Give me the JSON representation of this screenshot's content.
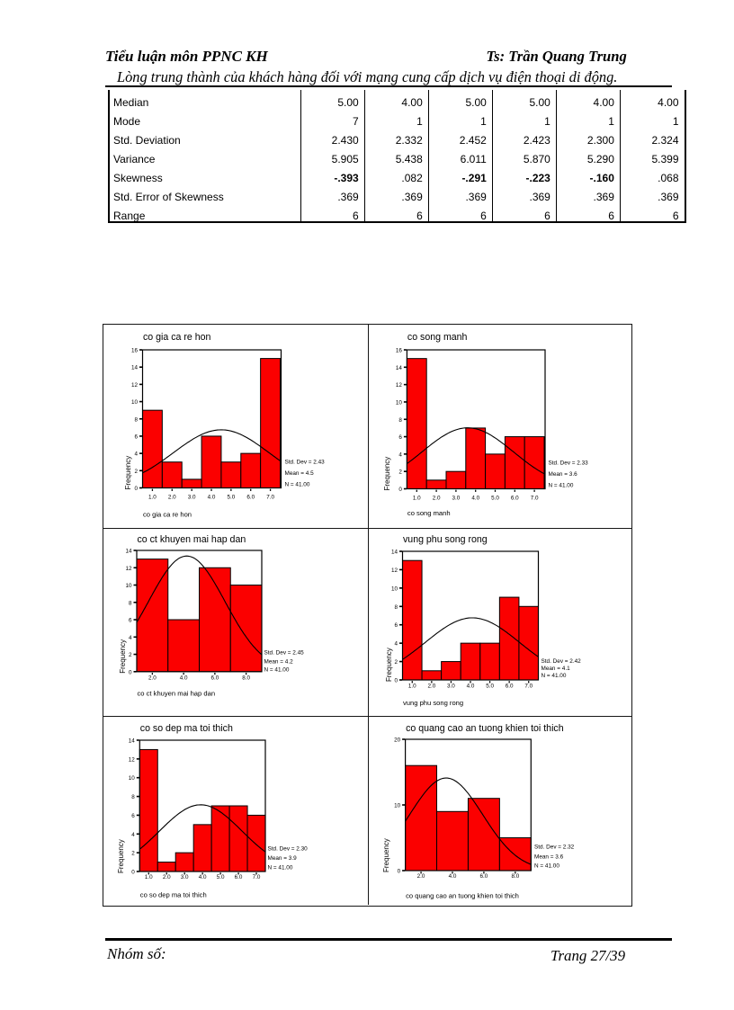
{
  "header": {
    "course": "Tiểu luận môn PPNC KH",
    "teacher": "Ts: Trần Quang Trung",
    "subtitle": "Lòng trung thành của khách hàng đối với mạng cung cấp dịch vụ điện thoại di động."
  },
  "stats_table": {
    "rows": [
      {
        "label": "Median",
        "values": [
          "5.00",
          "4.00",
          "5.00",
          "5.00",
          "4.00",
          "4.00"
        ]
      },
      {
        "label": "Mode",
        "values": [
          "7",
          "1",
          "1",
          "1",
          "1",
          "1"
        ]
      },
      {
        "label": "Std. Deviation",
        "values": [
          "2.430",
          "2.332",
          "2.452",
          "2.423",
          "2.300",
          "2.324"
        ]
      },
      {
        "label": "Variance",
        "values": [
          "5.905",
          "5.438",
          "6.011",
          "5.870",
          "5.290",
          "5.399"
        ]
      },
      {
        "label": "Skewness",
        "values": [
          "-.393",
          ".082",
          "-.291",
          "-.223",
          "-.160",
          ".068"
        ],
        "bold": [
          true,
          false,
          true,
          true,
          true,
          false
        ]
      },
      {
        "label": "Std. Error of Skewness",
        "values": [
          ".369",
          ".369",
          ".369",
          ".369",
          ".369",
          ".369"
        ]
      },
      {
        "label": "Range",
        "values": [
          "6",
          "6",
          "6",
          "6",
          "6",
          "6"
        ]
      }
    ]
  },
  "chart_data": [
    {
      "type": "bar",
      "title": "co gia ca re hon",
      "xlabel": "co gia ca re hon",
      "ylabel": "Frequency",
      "categories": [
        "1.0",
        "2.0",
        "3.0",
        "4.0",
        "5.0",
        "6.0",
        "7.0"
      ],
      "values": [
        9,
        3,
        1,
        6,
        3,
        4,
        15
      ],
      "ylim": [
        0,
        16
      ],
      "ytick_step": 2,
      "stats": [
        "Std. Dev = 2.43",
        "Mean = 4.5",
        "N = 41.00"
      ],
      "mean": 4.5,
      "std_dev": 2.43,
      "n": 41,
      "bin_width": 1,
      "bar_color": "#fb0000"
    },
    {
      "type": "bar",
      "title": "co song manh",
      "xlabel": "co song manh",
      "ylabel": "Frequency",
      "categories": [
        "1.0",
        "2.0",
        "3.0",
        "4.0",
        "5.0",
        "6.0",
        "7.0"
      ],
      "values": [
        15,
        1,
        2,
        7,
        4,
        6,
        6
      ],
      "ylim": [
        0,
        16
      ],
      "ytick_step": 2,
      "stats": [
        "Std. Dev = 2.33",
        "Mean = 3.6",
        "N = 41.00"
      ],
      "mean": 3.6,
      "std_dev": 2.33,
      "n": 41,
      "bin_width": 1,
      "bar_color": "#fb0000"
    },
    {
      "type": "bar",
      "title": "co ct khuyen mai hap dan",
      "xlabel": "co ct khuyen mai hap dan",
      "ylabel": "Frequency",
      "categories": [
        "2.0",
        "4.0",
        "6.0",
        "8.0"
      ],
      "values": [
        13,
        6,
        12,
        10
      ],
      "ylim": [
        0,
        14
      ],
      "ytick_step": 2,
      "stats": [
        "Std. Dev = 2.45",
        "Mean = 4.2",
        "N = 41.00"
      ],
      "mean": 4.2,
      "std_dev": 2.45,
      "n": 41,
      "bin_width": 2,
      "bar_color": "#fb0000"
    },
    {
      "type": "bar",
      "title": "vung phu song rong",
      "xlabel": "vung phu song rong",
      "ylabel": "Frequency",
      "categories": [
        "1.0",
        "2.0",
        "3.0",
        "4.0",
        "5.0",
        "6.0",
        "7.0"
      ],
      "values": [
        13,
        1,
        2,
        4,
        4,
        9,
        8
      ],
      "ylim": [
        0,
        14
      ],
      "ytick_step": 2,
      "stats": [
        "Std. Dev = 2.42",
        "Mean = 4.1",
        "N = 41.00"
      ],
      "mean": 4.1,
      "std_dev": 2.42,
      "n": 41,
      "bin_width": 1,
      "bar_color": "#fb0000"
    },
    {
      "type": "bar",
      "title": "co so dep ma toi thich",
      "xlabel": "co so dep ma toi thich",
      "ylabel": "Frequency",
      "categories": [
        "1.0",
        "2.0",
        "3.0",
        "4.0",
        "5.0",
        "6.0",
        "7.0"
      ],
      "values": [
        13,
        1,
        2,
        5,
        7,
        7,
        6
      ],
      "ylim": [
        0,
        14
      ],
      "ytick_step": 2,
      "stats": [
        "Std. Dev = 2.30",
        "Mean = 3.9",
        "N = 41.00"
      ],
      "mean": 3.9,
      "std_dev": 2.3,
      "n": 41,
      "bin_width": 1,
      "bar_color": "#fb0000"
    },
    {
      "type": "bar",
      "title": "co quang cao an tuong khien toi thich",
      "xlabel": "co quang cao an tuong khien toi thich",
      "ylabel": "Frequency",
      "categories": [
        "2.0",
        "4.0",
        "6.0",
        "8.0"
      ],
      "values": [
        16,
        9,
        11,
        5
      ],
      "ylim": [
        0,
        20
      ],
      "ytick_step": 10,
      "stats": [
        "Std. Dev = 2.32",
        "Mean = 3.6",
        "N = 41.00"
      ],
      "mean": 3.6,
      "std_dev": 2.32,
      "n": 41,
      "bin_width": 2,
      "bar_color": "#fb0000"
    }
  ],
  "footer": {
    "left": "Nhóm số:",
    "right": "Trang 27/39"
  }
}
